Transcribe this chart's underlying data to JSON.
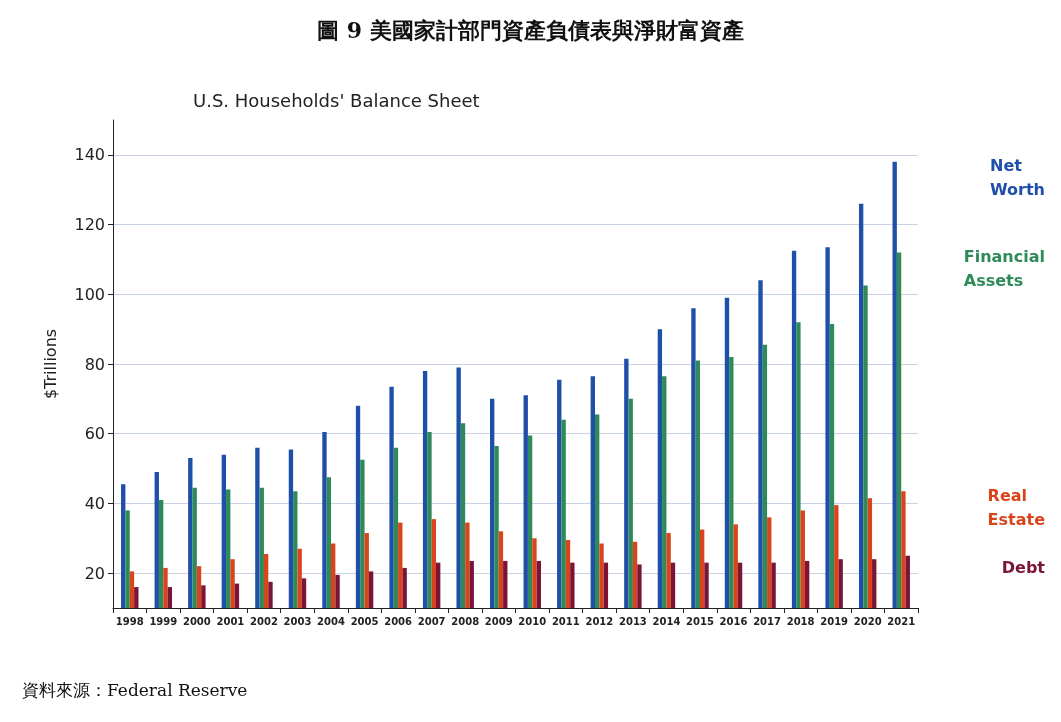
{
  "chart_data": {
    "type": "bar",
    "title": "圖 9 美國家計部門資產負債表與淨財富資產",
    "subtitle": "U.S. Households' Balance Sheet",
    "ylabel": "$Trillions",
    "categories": [
      "1998",
      "1999",
      "2000",
      "2001",
      "2002",
      "2003",
      "2004",
      "2005",
      "2006",
      "2007",
      "2008",
      "2009",
      "2010",
      "2011",
      "2012",
      "2013",
      "2014",
      "2015",
      "2016",
      "2017",
      "2018",
      "2019",
      "2020",
      "2021"
    ],
    "series": [
      {
        "name": "Net Worth",
        "color": "#1f4fa8",
        "values": [
          45.5,
          49,
          53,
          54,
          56,
          55.5,
          60.5,
          68,
          73.5,
          78,
          79,
          70,
          71,
          75.5,
          76.5,
          81.5,
          90,
          96,
          99,
          104,
          112.5,
          113.5,
          126,
          138
        ]
      },
      {
        "name": "Financial Assets",
        "color": "#2f8a5a",
        "values": [
          38,
          41,
          44.5,
          44,
          44.5,
          43.5,
          47.5,
          52.5,
          56,
          60.5,
          63,
          56.5,
          59.5,
          64,
          65.5,
          70,
          76.5,
          81,
          82,
          85.5,
          92,
          91.5,
          102.5,
          112
        ]
      },
      {
        "name": "Real Estate",
        "color": "#d9441c",
        "values": [
          20.5,
          21.5,
          22,
          24,
          25.5,
          27,
          28.5,
          31.5,
          34.5,
          35.5,
          34.5,
          32,
          30,
          29.5,
          28.5,
          29,
          31.5,
          32.5,
          34,
          36,
          38,
          39.5,
          41.5,
          43.5
        ]
      },
      {
        "name": "Debt",
        "color": "#7a1538",
        "values": [
          16,
          16,
          16.5,
          17,
          17.5,
          18.5,
          19.5,
          20.5,
          21.5,
          23,
          23.5,
          23.5,
          23.5,
          23,
          23,
          22.5,
          23,
          23,
          23,
          23,
          23.5,
          24,
          24,
          25
        ]
      }
    ],
    "ylim": [
      10,
      150
    ],
    "yticks": [
      20,
      40,
      60,
      80,
      100,
      120,
      140
    ],
    "grid": "y",
    "legend": "right",
    "annotations": [
      "資料來源：Federal Reserve"
    ]
  }
}
